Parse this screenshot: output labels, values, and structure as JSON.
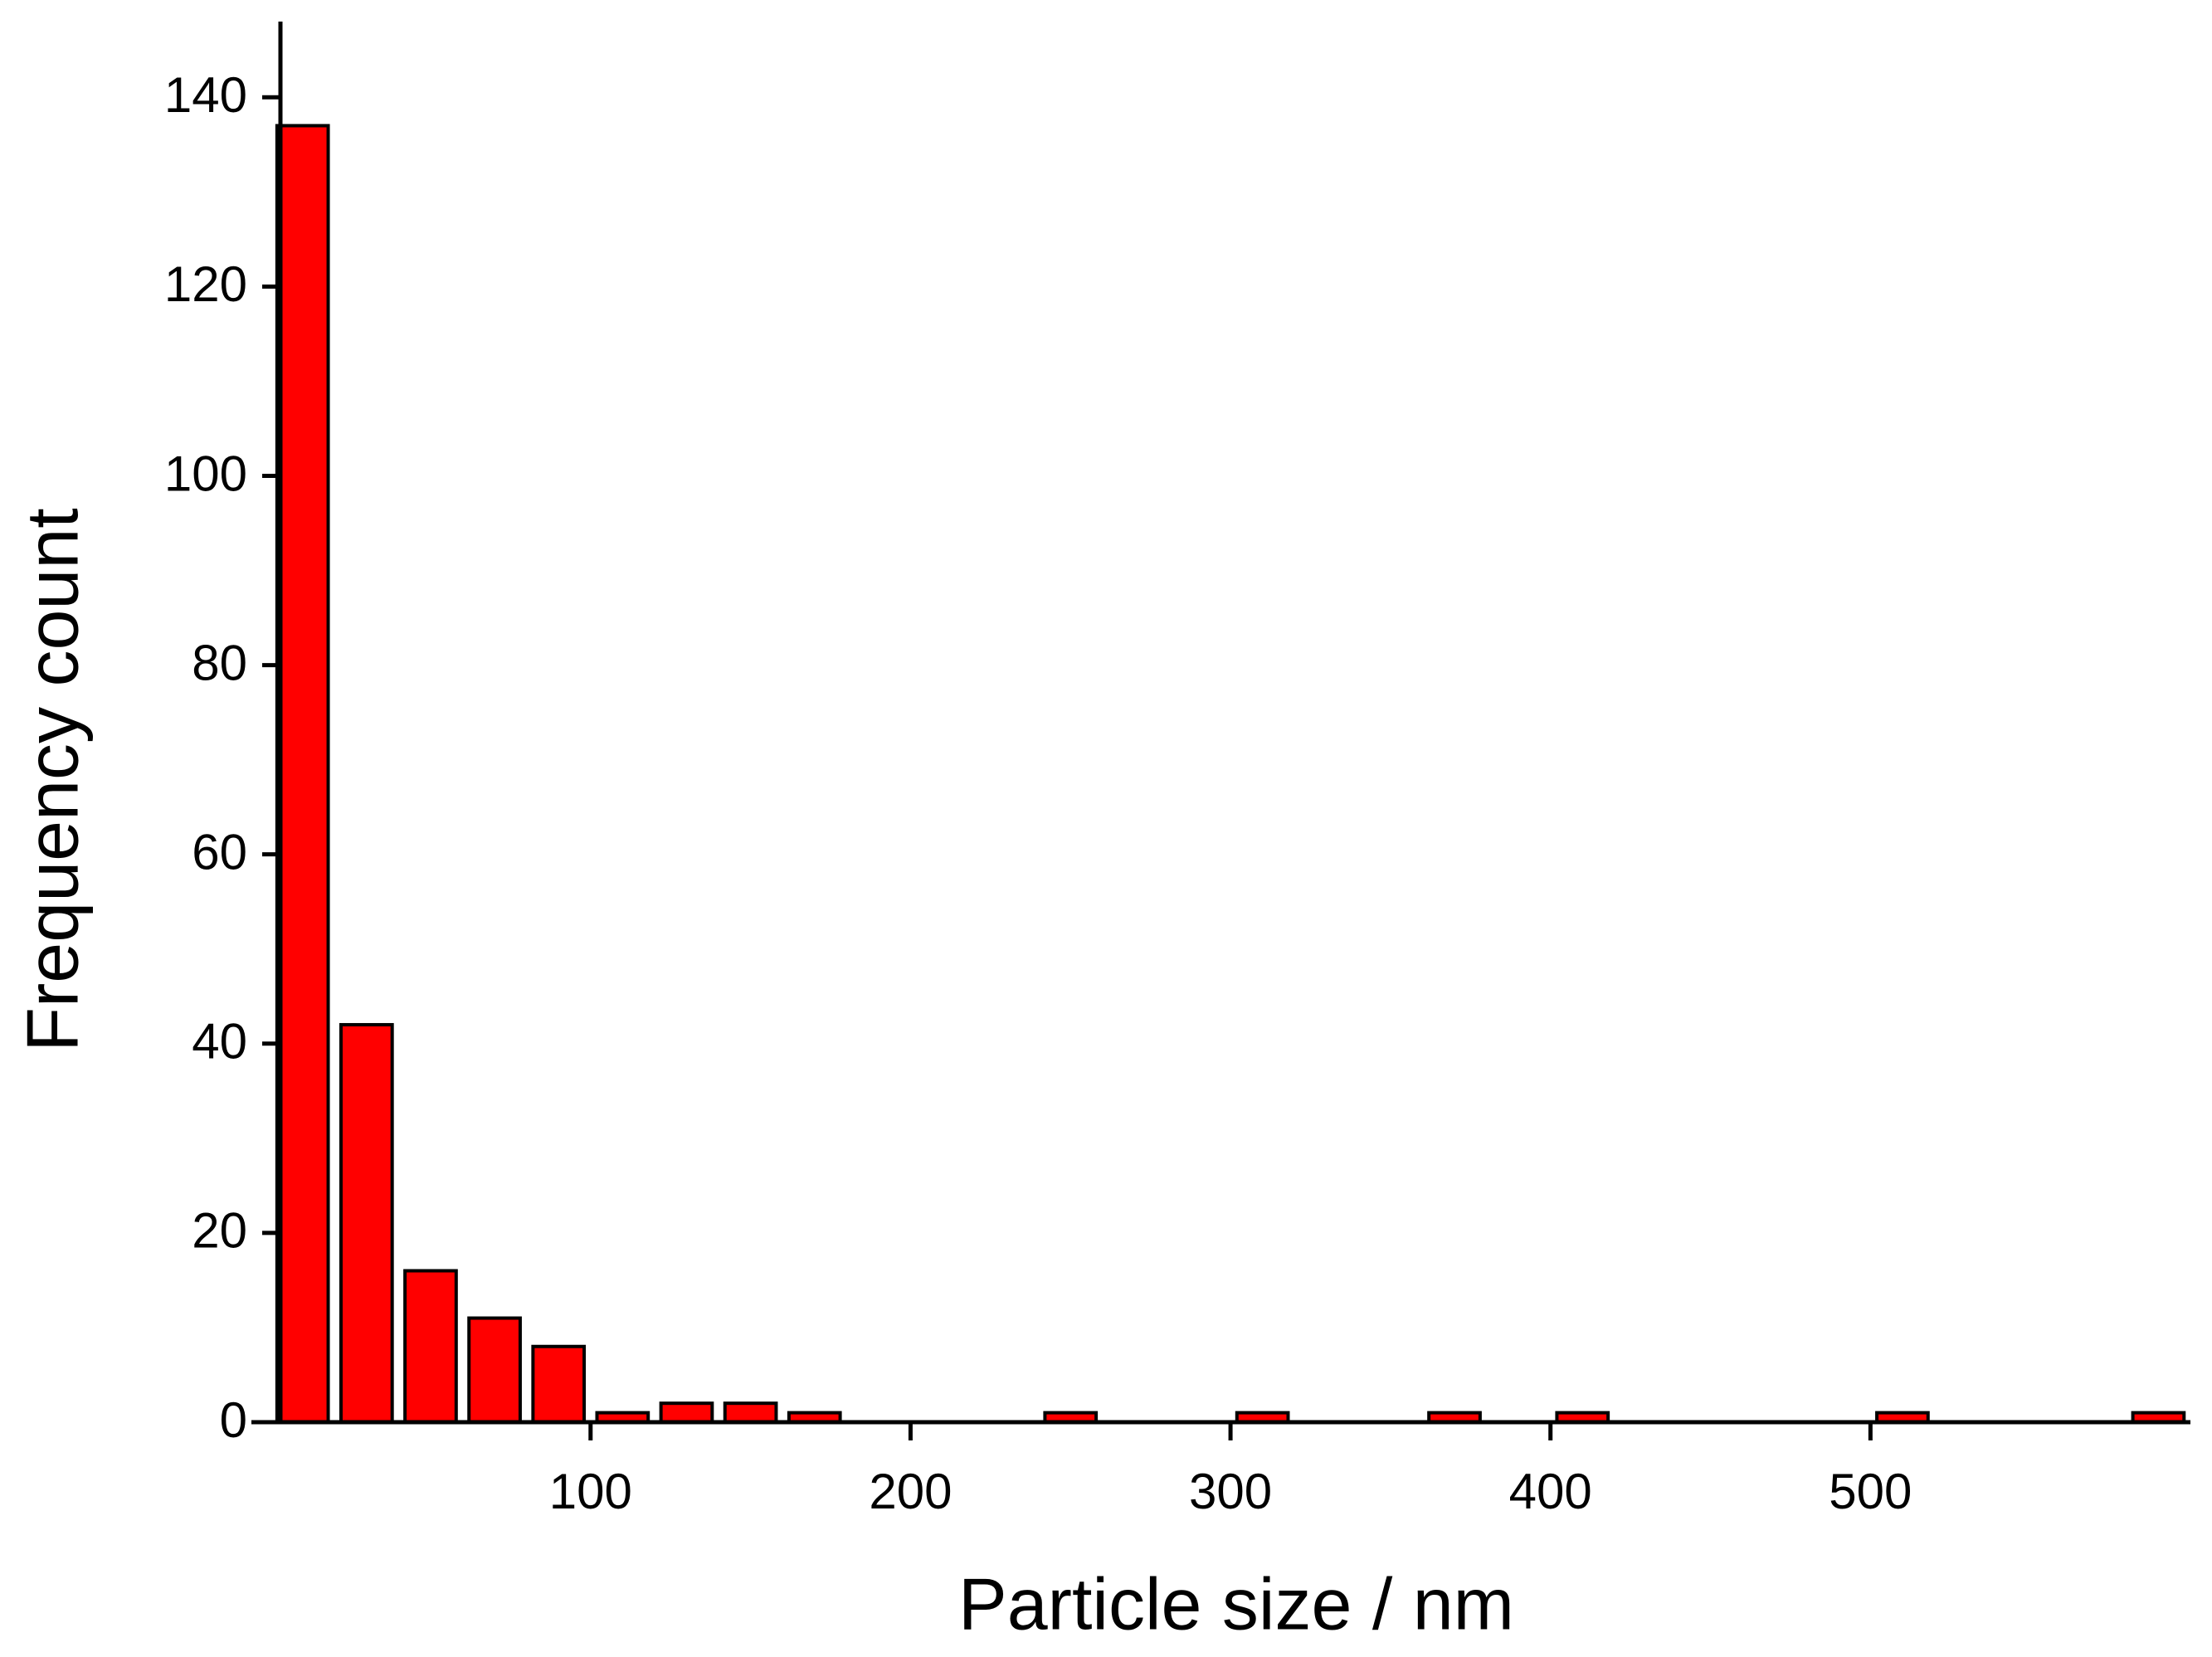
{
  "chart_data": {
    "type": "histogram",
    "x_label": "Particle size / nm",
    "y_label": "Frequency count",
    "bins": [
      0,
      20,
      40,
      60,
      80,
      100,
      120,
      140,
      160,
      180,
      200,
      220,
      240,
      260,
      280,
      300,
      320,
      340,
      360,
      380,
      400,
      420,
      440,
      460,
      480,
      500,
      520,
      540,
      560,
      580,
      600
    ],
    "values": [
      137,
      42,
      16,
      11,
      8,
      1,
      2,
      2,
      1,
      0,
      0,
      0,
      1,
      0,
      0,
      1,
      0,
      0,
      1,
      0,
      1,
      0,
      0,
      0,
      0,
      1,
      0,
      0,
      0,
      1
    ],
    "color": "#ff0000",
    "xlim": [
      -6,
      600
    ],
    "xticks": [
      100,
      200,
      300,
      400,
      500
    ],
    "ylim": [
      0,
      148
    ],
    "yticks": [
      0,
      20,
      40,
      60,
      80,
      100,
      120,
      140
    ],
    "grid": false
  }
}
